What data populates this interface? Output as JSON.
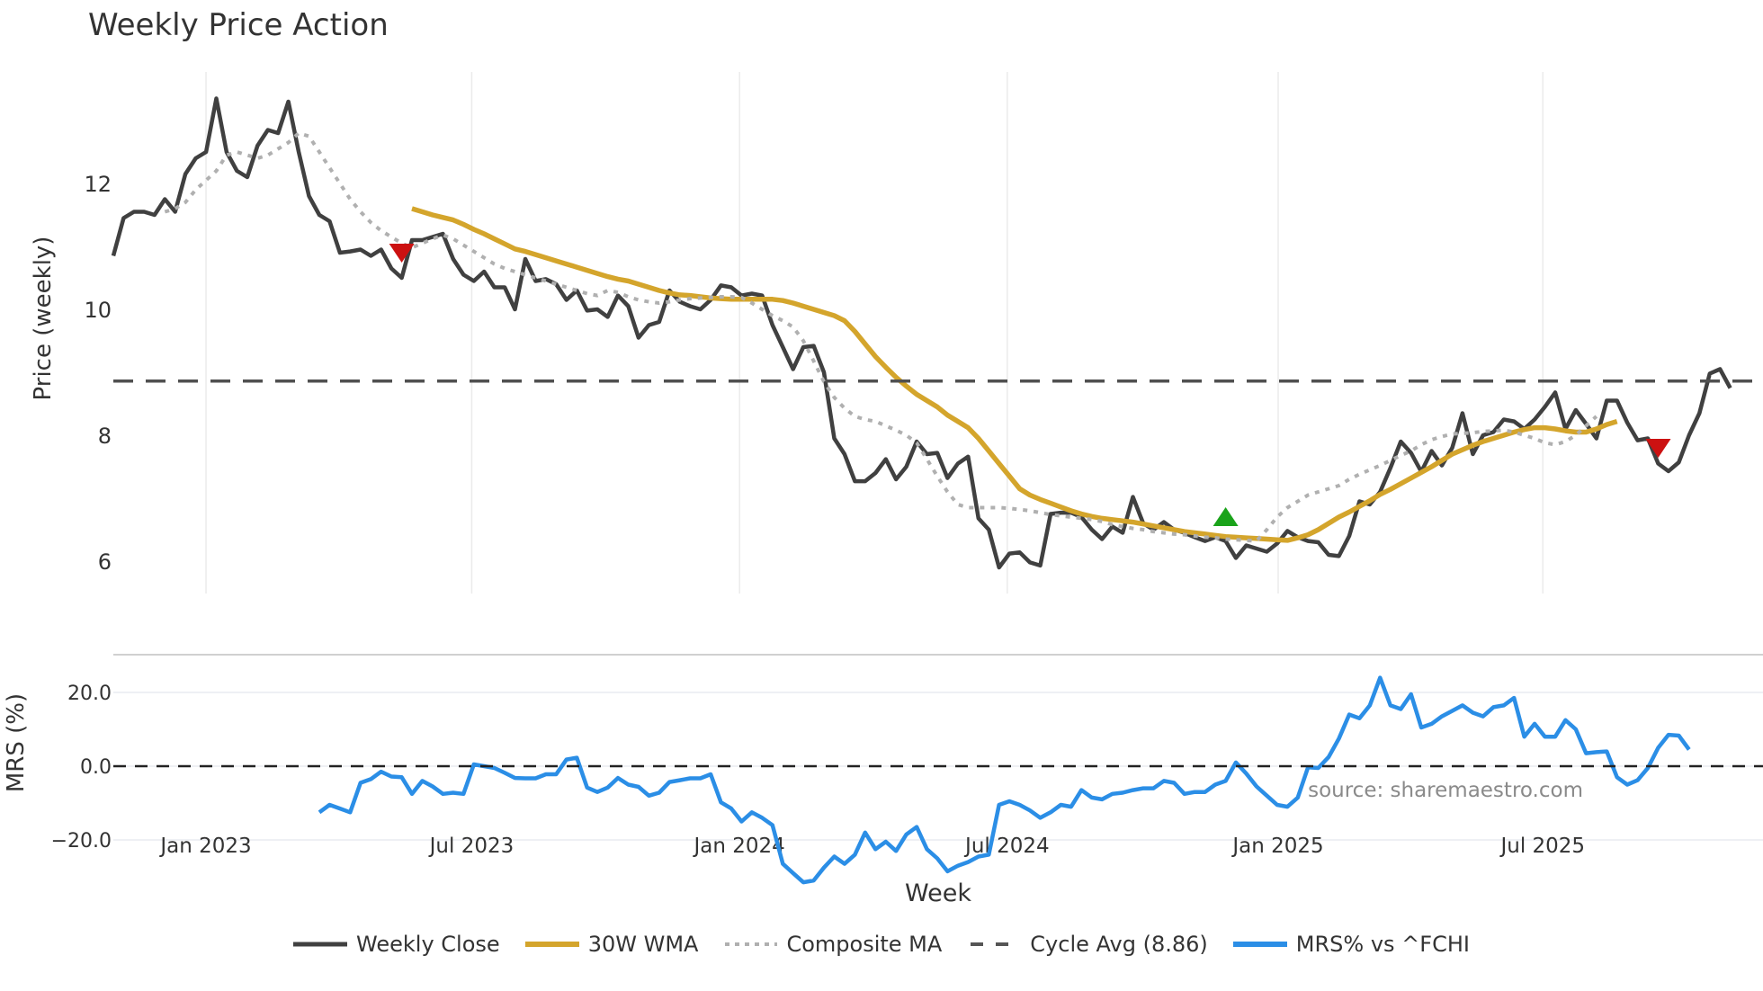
{
  "chart_data": [
    {
      "type": "line",
      "title": "Weekly Price Action",
      "panel": "price",
      "xlabel": "",
      "ylabel": "Price (weekly)",
      "ylim": [
        5.6,
        13.9
      ],
      "yticks": [
        6,
        8,
        10,
        12
      ],
      "x_index_start_label": "approx. Nov 2022",
      "series": [
        {
          "name": "Weekly Close",
          "color": "#404040",
          "style": "solid",
          "start_index": 0,
          "values": [
            10.85,
            11.45,
            11.55,
            11.55,
            11.5,
            11.75,
            11.55,
            12.15,
            12.4,
            12.5,
            13.35,
            12.5,
            12.2,
            12.1,
            12.6,
            12.85,
            12.8,
            13.3,
            12.5,
            11.8,
            11.5,
            11.4,
            10.9,
            10.92,
            10.95,
            10.85,
            10.95,
            10.65,
            10.5,
            11.1,
            11.1,
            11.15,
            11.2,
            10.8,
            10.55,
            10.45,
            10.6,
            10.35,
            10.35,
            10.0,
            10.8,
            10.45,
            10.48,
            10.4,
            10.15,
            10.3,
            9.98,
            10.0,
            9.88,
            10.22,
            10.05,
            9.55,
            9.75,
            9.8,
            10.3,
            10.12,
            10.05,
            10.0,
            10.15,
            10.38,
            10.35,
            10.22,
            10.25,
            10.22,
            9.75,
            9.4,
            9.05,
            9.4,
            9.42,
            9.0,
            7.95,
            7.7,
            7.27,
            7.27,
            7.4,
            7.62,
            7.3,
            7.5,
            7.9,
            7.7,
            7.72,
            7.32,
            7.55,
            7.66,
            6.68,
            6.5,
            5.9,
            6.12,
            6.14,
            5.98,
            5.93,
            6.75,
            6.77,
            6.77,
            6.7,
            6.5,
            6.35,
            6.55,
            6.45,
            7.02,
            6.6,
            6.5,
            6.62,
            6.5,
            6.45,
            6.38,
            6.32,
            6.38,
            6.32,
            6.05,
            6.25,
            6.2,
            6.15,
            6.28,
            6.48,
            6.38,
            6.32,
            6.3,
            6.1,
            6.08,
            6.4,
            6.95,
            6.9,
            7.1,
            7.48,
            7.9,
            7.72,
            7.42,
            7.75,
            7.52,
            7.8,
            8.35,
            7.7,
            8.0,
            8.05,
            8.25,
            8.22,
            8.1,
            8.25,
            8.45,
            8.68,
            8.1,
            8.4,
            8.18,
            7.95,
            8.55,
            8.55,
            8.2,
            7.92,
            7.95,
            7.55,
            7.43,
            7.57,
            8.0,
            8.35,
            8.98,
            9.05,
            8.75
          ]
        },
        {
          "name": "30W WMA",
          "color": "#d4a52c",
          "style": "solid",
          "start_index": 29,
          "values": [
            11.6,
            11.55,
            11.5,
            11.46,
            11.42,
            11.35,
            11.27,
            11.2,
            11.12,
            11.04,
            10.96,
            10.92,
            10.87,
            10.82,
            10.77,
            10.72,
            10.67,
            10.62,
            10.57,
            10.52,
            10.48,
            10.45,
            10.4,
            10.35,
            10.3,
            10.26,
            10.23,
            10.22,
            10.2,
            10.18,
            10.17,
            10.16,
            10.16,
            10.16,
            10.16,
            10.16,
            10.14,
            10.1,
            10.05,
            10.0,
            9.95,
            9.9,
            9.82,
            9.65,
            9.45,
            9.25,
            9.08,
            8.92,
            8.78,
            8.65,
            8.55,
            8.45,
            8.32,
            8.22,
            8.12,
            7.95,
            7.75,
            7.55,
            7.35,
            7.15,
            7.05,
            6.98,
            6.92,
            6.86,
            6.8,
            6.75,
            6.71,
            6.68,
            6.66,
            6.64,
            6.62,
            6.59,
            6.56,
            6.53,
            6.5,
            6.47,
            6.45,
            6.43,
            6.41,
            6.39,
            6.38,
            6.37,
            6.36,
            6.35,
            6.34,
            6.33,
            6.37,
            6.42,
            6.5,
            6.6,
            6.7,
            6.78,
            6.87,
            6.96,
            7.06,
            7.14,
            7.23,
            7.32,
            7.41,
            7.5,
            7.6,
            7.7,
            7.77,
            7.84,
            7.9,
            7.95,
            8.0,
            8.05,
            8.09,
            8.12,
            8.12,
            8.1,
            8.07,
            8.05,
            8.05,
            8.1,
            8.17,
            8.22
          ]
        },
        {
          "name": "Composite MA",
          "color": "#b0b0b0",
          "style": "dotted",
          "start_index": 5,
          "values": [
            11.55,
            11.6,
            11.7,
            11.9,
            12.05,
            12.2,
            12.45,
            12.5,
            12.45,
            12.4,
            12.45,
            12.55,
            12.65,
            12.8,
            12.75,
            12.5,
            12.25,
            12.0,
            11.75,
            11.55,
            11.38,
            11.25,
            11.15,
            11.05,
            10.98,
            11.05,
            11.12,
            11.18,
            11.12,
            11.02,
            10.92,
            10.82,
            10.72,
            10.65,
            10.6,
            10.55,
            10.5,
            10.45,
            10.4,
            10.35,
            10.3,
            10.25,
            10.22,
            10.3,
            10.27,
            10.2,
            10.15,
            10.12,
            10.1,
            10.12,
            10.15,
            10.17,
            10.18,
            10.19,
            10.2,
            10.2,
            10.19,
            10.1,
            10.0,
            9.9,
            9.82,
            9.72,
            9.5,
            9.18,
            8.85,
            8.6,
            8.43,
            8.3,
            8.25,
            8.22,
            8.15,
            8.08,
            8.0,
            7.88,
            7.62,
            7.35,
            7.1,
            6.9,
            6.85,
            6.85,
            6.85,
            6.85,
            6.84,
            6.82,
            6.8,
            6.77,
            6.74,
            6.72,
            6.7,
            6.68,
            6.66,
            6.63,
            6.58,
            6.55,
            6.52,
            6.5,
            6.47,
            6.45,
            6.43,
            6.42,
            6.4,
            6.38,
            6.37,
            6.35,
            6.34,
            6.33,
            6.32,
            6.5,
            6.7,
            6.85,
            6.95,
            7.05,
            7.1,
            7.15,
            7.2,
            7.3,
            7.38,
            7.45,
            7.52,
            7.6,
            7.68,
            7.75,
            7.85,
            7.93,
            7.98,
            8.02,
            8.03,
            8.04,
            8.06,
            8.07,
            8.08,
            8.05,
            8.0,
            7.95,
            7.88,
            7.85,
            7.9,
            8.0,
            8.15,
            8.3
          ]
        },
        {
          "name": "Cycle Avg (8.86)",
          "color": "#404040",
          "style": "dashed",
          "value": 8.86
        }
      ],
      "markers": [
        {
          "type": "sell",
          "shape": "triangle-down",
          "color": "#cc1111",
          "index": 28,
          "price": 10.9
        },
        {
          "type": "buy",
          "shape": "triangle-up",
          "color": "#1aa31a",
          "index": 108,
          "price": 6.7
        },
        {
          "type": "sell",
          "shape": "triangle-down",
          "color": "#cc1111",
          "index": 150,
          "price": 7.8
        }
      ],
      "grid": {
        "x": true,
        "y": false
      }
    },
    {
      "type": "line",
      "panel": "mrs",
      "xlabel": "Week",
      "ylabel": "MRS (%)",
      "ylim": [
        -30,
        25
      ],
      "yticks": [
        -20.0,
        0.0,
        20.0
      ],
      "ytick_labels": [
        "−20.0",
        "0.0",
        "20.0"
      ],
      "series": [
        {
          "name": "MRS% vs ^FCHI",
          "color": "#2b8ee6",
          "style": "solid",
          "start_index": 20,
          "values": [
            -12.5,
            -10.5,
            -11.5,
            -12.5,
            -4.5,
            -3.5,
            -1.5,
            -2.8,
            -3.0,
            -7.5,
            -4.0,
            -5.5,
            -7.5,
            -7.2,
            -7.5,
            0.5,
            0.0,
            -0.5,
            -1.8,
            -3.2,
            -3.3,
            -3.3,
            -2.2,
            -2.2,
            1.8,
            2.3,
            -5.8,
            -7.0,
            -5.8,
            -3.2,
            -5.0,
            -5.6,
            -8.0,
            -7.2,
            -4.3,
            -3.8,
            -3.3,
            -3.3,
            -2.2,
            -9.8,
            -11.5,
            -15.0,
            -12.5,
            -14.0,
            -16.0,
            -26.5,
            -29.0,
            -31.5,
            -31.0,
            -27.5,
            -24.5,
            -26.5,
            -24.0,
            -18.0,
            -22.5,
            -20.5,
            -23.0,
            -18.5,
            -16.5,
            -22.5,
            -25.0,
            -28.5,
            -27.0,
            -26.0,
            -24.5,
            -24.0,
            -10.5,
            -9.5,
            -10.5,
            -12.0,
            -14.0,
            -12.5,
            -10.5,
            -11.0,
            -6.5,
            -8.5,
            -9.0,
            -7.5,
            -7.2,
            -6.5,
            -6.0,
            -6.0,
            -4.0,
            -4.5,
            -7.5,
            -7.0,
            -7.0,
            -5.0,
            -4.0,
            1.0,
            -2.0,
            -5.5,
            -8.0,
            -10.5,
            -11.0,
            -8.5,
            -0.3,
            -0.5,
            2.5,
            7.5,
            14.0,
            13.0,
            16.5,
            24.0,
            16.5,
            15.5,
            19.5,
            10.5,
            11.5,
            13.5,
            15.0,
            16.5,
            14.5,
            13.5,
            16.0,
            16.5,
            18.5,
            8.0,
            11.5,
            8.0,
            8.0,
            12.5,
            10.0,
            3.5,
            3.8,
            4.0,
            -3.0,
            -5.0,
            -3.8,
            -0.5,
            5.0,
            8.5,
            8.3,
            4.5
          ]
        },
        {
          "name": "zero-line",
          "color": "#222222",
          "style": "dashed",
          "value": 0
        }
      ]
    }
  ],
  "title": "Weekly Price Action",
  "axes": {
    "price_ylabel": "Price (weekly)",
    "mrs_ylabel": "MRS (%)",
    "xlabel": "Week",
    "x_ticks": [
      {
        "label": "Jan 2023",
        "index": 9
      },
      {
        "label": "Jul 2023",
        "index": 34.8
      },
      {
        "label": "Jan 2024",
        "index": 60.8
      },
      {
        "label": "Jul 2024",
        "index": 86.8
      },
      {
        "label": "Jan 2025",
        "index": 113.1
      },
      {
        "label": "Jul 2025",
        "index": 138.8
      }
    ],
    "price_yticks": [
      "6",
      "8",
      "10",
      "12"
    ],
    "mrs_yticks": [
      "−20.0",
      "0.0",
      "20.0"
    ]
  },
  "legend": [
    {
      "label": "Weekly Close",
      "color": "#404040",
      "style": "solid"
    },
    {
      "label": "30W WMA",
      "color": "#d4a52c",
      "style": "solid"
    },
    {
      "label": "Composite MA",
      "color": "#b0b0b0",
      "style": "dotted"
    },
    {
      "label": "Cycle Avg (8.86)",
      "color": "#404040",
      "style": "dashed"
    },
    {
      "label": "MRS% vs ^FCHI",
      "color": "#2b8ee6",
      "style": "solid"
    }
  ],
  "annotation": {
    "source": "source: sharemaestro.com"
  }
}
